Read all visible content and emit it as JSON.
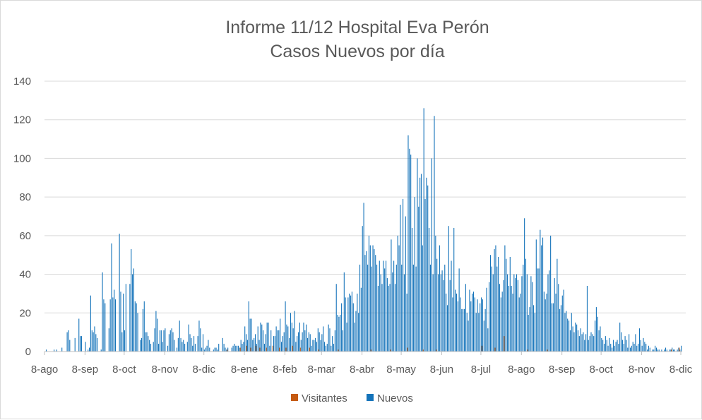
{
  "chart_data": {
    "type": "bar",
    "title": "Informe 11/12 Hospital Eva Perón",
    "subtitle": "Casos Nuevos por día",
    "xlabel": "",
    "ylabel": "",
    "ylim": [
      0,
      140
    ],
    "yticks": [
      0,
      20,
      40,
      60,
      80,
      100,
      120,
      140
    ],
    "grid": true,
    "legend_position": "bottom",
    "x_tick_labels": [
      {
        "label": "8-ago",
        "day": 0
      },
      {
        "label": "8-sep",
        "day": 31
      },
      {
        "label": "8-oct",
        "day": 61
      },
      {
        "label": "8-nov",
        "day": 92
      },
      {
        "label": "8-dic",
        "day": 122
      },
      {
        "label": "8-ene",
        "day": 153
      },
      {
        "label": "8-feb",
        "day": 184
      },
      {
        "label": "8-mar",
        "day": 212
      },
      {
        "label": "8-abr",
        "day": 243
      },
      {
        "label": "8-may",
        "day": 273
      },
      {
        "label": "8-jun",
        "day": 304
      },
      {
        "label": "8-jul",
        "day": 334
      },
      {
        "label": "8-ago",
        "day": 365
      },
      {
        "label": "8-sep",
        "day": 396
      },
      {
        "label": "8-oct",
        "day": 426
      },
      {
        "label": "8-nov",
        "day": 457
      },
      {
        "label": "8-dic",
        "day": 487
      }
    ],
    "series": [
      {
        "name": "Visitantes",
        "color": "#C55A11",
        "points": [
          [
            140,
            1
          ],
          [
            150,
            2
          ],
          [
            155,
            3
          ],
          [
            158,
            2
          ],
          [
            162,
            3
          ],
          [
            165,
            2
          ],
          [
            170,
            2
          ],
          [
            175,
            3
          ],
          [
            180,
            2
          ],
          [
            185,
            2
          ],
          [
            190,
            3
          ],
          [
            196,
            2
          ],
          [
            203,
            2
          ],
          [
            210,
            1
          ],
          [
            225,
            1
          ],
          [
            250,
            1
          ],
          [
            265,
            1
          ],
          [
            278,
            2
          ],
          [
            290,
            1
          ],
          [
            300,
            1
          ],
          [
            335,
            3
          ],
          [
            345,
            2
          ],
          [
            352,
            8
          ],
          [
            370,
            1
          ],
          [
            385,
            1
          ],
          [
            480,
            1
          ],
          [
            486,
            2
          ]
        ]
      },
      {
        "name": "Nuevos",
        "color": "#1473BA",
        "values": [
          0,
          1,
          0,
          0,
          0,
          0,
          0,
          1,
          0,
          1,
          0,
          0,
          0,
          2,
          0,
          0,
          0,
          10,
          11,
          6,
          0,
          0,
          0,
          7,
          0,
          0,
          17,
          8,
          8,
          0,
          0,
          5,
          0,
          1,
          2,
          29,
          11,
          10,
          13,
          9,
          7,
          0,
          0,
          1,
          41,
          27,
          25,
          0,
          0,
          12,
          27,
          56,
          28,
          32,
          27,
          0,
          0,
          61,
          31,
          10,
          30,
          11,
          35,
          0,
          0,
          35,
          53,
          40,
          43,
          26,
          25,
          20,
          0,
          6,
          7,
          22,
          26,
          10,
          10,
          8,
          6,
          4,
          0,
          5,
          12,
          21,
          17,
          4,
          11,
          11,
          5,
          11,
          12,
          0,
          3,
          9,
          11,
          12,
          10,
          6,
          0,
          2,
          7,
          16,
          7,
          5,
          6,
          4,
          0,
          5,
          14,
          9,
          7,
          3,
          8,
          4,
          0,
          8,
          16,
          12,
          2,
          9,
          1,
          2,
          3,
          6,
          2,
          0,
          0,
          1,
          2,
          2,
          1,
          4,
          0,
          0,
          7,
          4,
          2,
          1,
          2,
          0,
          0,
          2,
          3,
          4,
          3,
          3,
          3,
          2,
          6,
          4,
          5,
          13,
          9,
          6,
          26,
          17,
          17,
          6,
          7,
          9,
          4,
          13,
          6,
          15,
          14,
          11,
          4,
          9,
          15,
          15,
          3,
          11,
          0,
          8,
          8,
          13,
          11,
          11,
          17,
          5,
          8,
          10,
          26,
          14,
          13,
          7,
          20,
          15,
          12,
          21,
          5,
          8,
          10,
          15,
          6,
          10,
          15,
          11,
          14,
          7,
          10,
          9,
          3,
          6,
          6,
          7,
          5,
          12,
          10,
          6,
          9,
          13,
          5,
          3,
          4,
          14,
          12,
          3,
          8,
          4,
          11,
          35,
          19,
          18,
          19,
          25,
          11,
          41,
          28,
          15,
          28,
          30,
          29,
          31,
          25,
          15,
          21,
          30,
          20,
          45,
          33,
          65,
          77,
          50,
          52,
          45,
          60,
          55,
          44,
          55,
          53,
          50,
          45,
          34,
          47,
          40,
          35,
          47,
          43,
          47,
          38,
          34,
          35,
          58,
          41,
          47,
          35,
          45,
          60,
          55,
          76,
          45,
          79,
          40,
          70,
          30,
          112,
          105,
          102,
          64,
          45,
          80,
          44,
          100,
          75,
          90,
          92,
          55,
          126,
          79,
          90,
          86,
          64,
          45,
          100,
          40,
          122,
          60,
          48,
          40,
          55,
          40,
          42,
          37,
          45,
          30,
          24,
          65,
          37,
          47,
          28,
          64,
          32,
          30,
          26,
          43,
          28,
          22,
          22,
          22,
          35,
          20,
          16,
          32,
          26,
          30,
          31,
          28,
          20,
          27,
          20,
          25,
          28,
          27,
          16,
          22,
          33,
          12,
          36,
          50,
          44,
          40,
          53,
          55,
          44,
          49,
          35,
          28,
          31,
          37,
          55,
          48,
          40,
          34,
          49,
          34,
          30,
          40,
          38,
          40,
          37,
          28,
          30,
          39,
          45,
          69,
          48,
          40,
          19,
          23,
          39,
          36,
          24,
          20,
          58,
          43,
          43,
          63,
          55,
          59,
          31,
          27,
          30,
          40,
          42,
          60,
          25,
          25,
          38,
          30,
          48,
          35,
          22,
          24,
          29,
          32,
          20,
          21,
          17,
          16,
          11,
          20,
          13,
          10,
          15,
          14,
          11,
          8,
          12,
          9,
          10,
          6,
          9,
          34,
          6,
          8,
          10,
          9,
          8,
          16,
          23,
          18,
          11,
          13,
          7,
          6,
          4,
          8,
          6,
          3,
          7,
          4,
          2,
          6,
          3,
          5,
          6,
          4,
          15,
          10,
          6,
          4,
          8,
          6,
          2,
          9,
          2,
          3,
          5,
          4,
          9,
          3,
          4,
          12,
          6,
          3,
          7,
          5,
          4,
          1,
          3,
          2,
          0,
          1,
          1,
          3,
          2,
          1,
          1,
          0,
          1,
          0,
          1,
          2,
          1,
          0,
          1,
          1,
          2,
          1,
          1,
          0,
          1,
          2,
          1,
          3
        ]
      }
    ]
  }
}
